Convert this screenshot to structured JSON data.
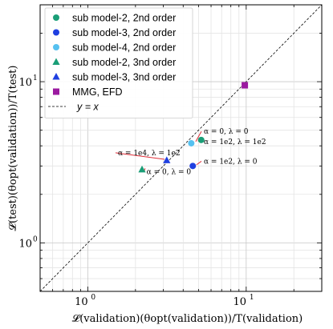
{
  "chart_data": {
    "type": "scatter",
    "xscale": "log",
    "yscale": "log",
    "xlim": [
      0.5,
      30
    ],
    "ylim": [
      0.5,
      30
    ],
    "grid": true,
    "legend_position": "upper-left",
    "xlabel": "𝓛(validation)(θopt(validation))/T(validation)",
    "ylabel": "𝓛(test)(θopt(validation))/T(test)",
    "xticks": [
      {
        "base": "10",
        "exp": "0",
        "value": 1
      },
      {
        "base": "10",
        "exp": "1",
        "value": 10
      }
    ],
    "yticks": [
      {
        "base": "10",
        "exp": "0",
        "value": 1
      },
      {
        "base": "10",
        "exp": "1",
        "value": 10
      }
    ],
    "series": [
      {
        "name": "sub model-2, 2nd order",
        "marker": "circle",
        "color": "#1a9e77",
        "points": [
          {
            "x": 5.2,
            "y": 4.35
          }
        ]
      },
      {
        "name": "sub model-3, 2nd order",
        "marker": "circle",
        "color": "#1f3fe0",
        "points": [
          {
            "x": 4.6,
            "y": 3.0
          }
        ]
      },
      {
        "name": "sub model-4, 2nd order",
        "marker": "circle",
        "color": "#56c1f0",
        "points": [
          {
            "x": 4.5,
            "y": 4.15
          }
        ]
      },
      {
        "name": "sub model-2, 3nd order",
        "marker": "triangle",
        "color": "#1a9e77",
        "points": [
          {
            "x": 2.2,
            "y": 2.85
          }
        ]
      },
      {
        "name": "sub model-3, 3nd order",
        "marker": "triangle",
        "color": "#1f3fe0",
        "points": [
          {
            "x": 3.15,
            "y": 3.25
          }
        ]
      },
      {
        "name": "MMG, EFD",
        "marker": "square",
        "color": "#9b1aa0",
        "points": [
          {
            "x": 9.8,
            "y": 9.5
          }
        ]
      }
    ],
    "reference_line": {
      "name": "y = x",
      "style": "dashed",
      "color": "#000000"
    },
    "annotations": [
      {
        "text": "α = 0,  λ = 0",
        "x": 5.4,
        "y": 4.75,
        "arrow_to": {
          "x": 4.8,
          "y": 4.25
        }
      },
      {
        "text": "α = 1e2,  λ = 1e2",
        "x": 5.4,
        "y": 4.1,
        "arrow_to": {
          "x": 4.95,
          "y": 4.3
        }
      },
      {
        "text": "α = 1e4,  λ = 1e2",
        "x": 1.55,
        "y": 3.5,
        "arrow_to": {
          "x": 3.05,
          "y": 3.3
        }
      },
      {
        "text": "α = 0,  λ = 0",
        "x": 2.35,
        "y": 2.67,
        "arrow_to": {
          "x": 2.3,
          "y": 2.9
        }
      },
      {
        "text": "α = 1e2,  λ = 0",
        "x": 5.4,
        "y": 3.1,
        "arrow_to": {
          "x": 4.85,
          "y": 3.05
        }
      }
    ],
    "annotation_arrow_color": "#e0303a"
  }
}
